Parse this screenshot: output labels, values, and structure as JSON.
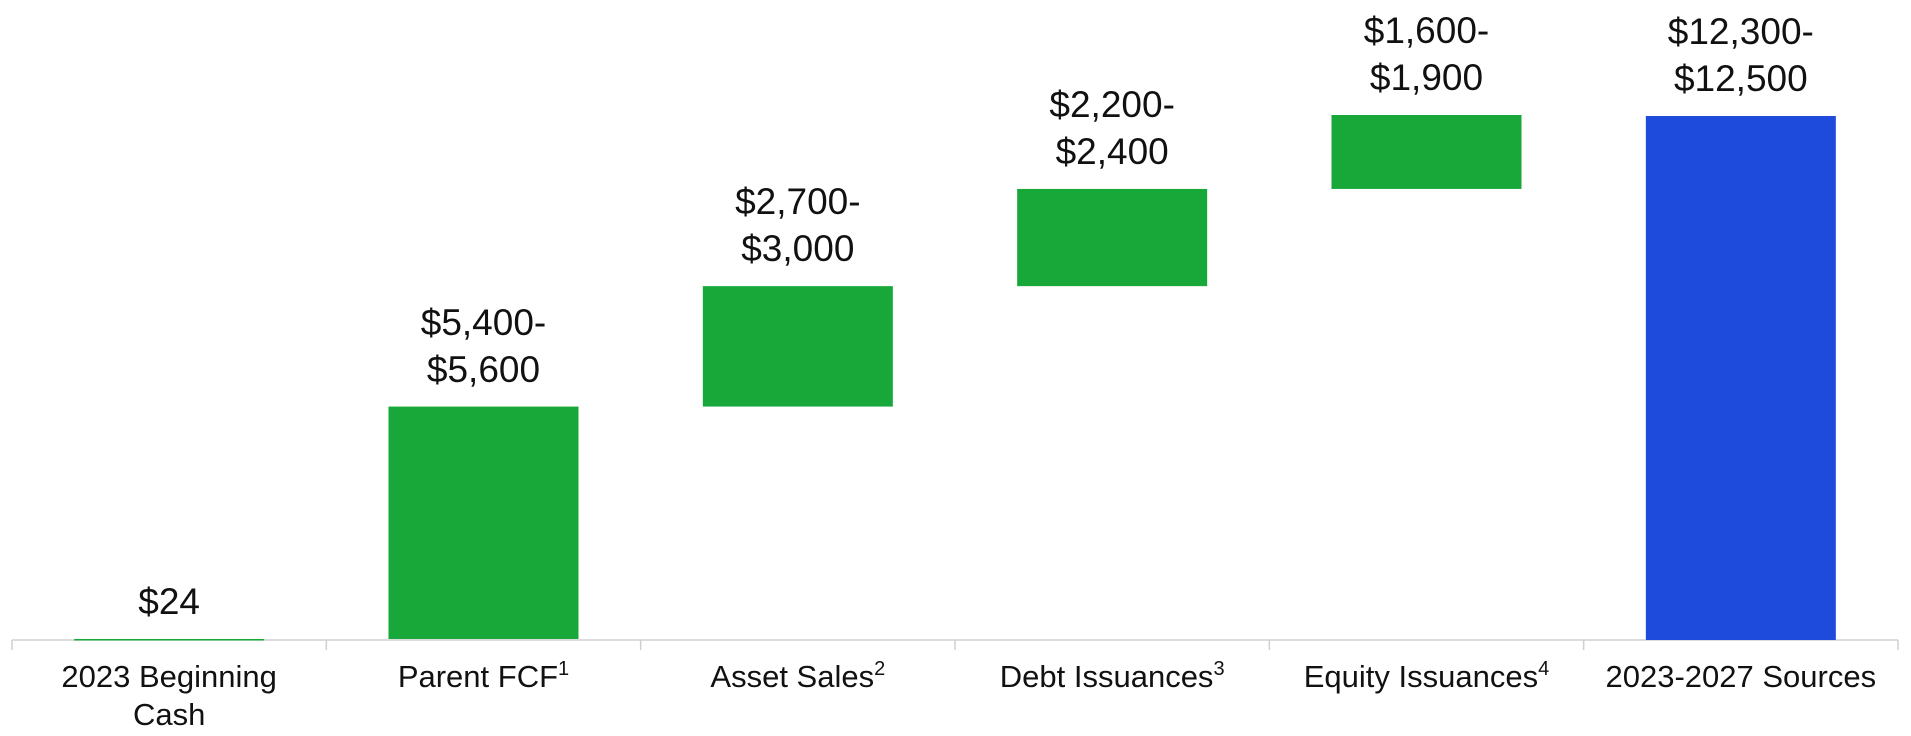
{
  "chart_data": {
    "type": "waterfall",
    "categories": [
      "2023 Beginning Cash",
      "Parent FCF",
      "Asset Sales",
      "Debt Issuances",
      "Equity Issuances",
      "2023-2027 Sources"
    ],
    "footnotes": [
      null,
      "1",
      "2",
      "3",
      "4",
      null
    ],
    "values": [
      24,
      5500,
      2850,
      2300,
      1750,
      12400
    ],
    "value_labels": [
      [
        "$24"
      ],
      [
        "$5,400-",
        "$5,600"
      ],
      [
        "$2,700-",
        "$3,000"
      ],
      [
        "$2,200-",
        "$2,400"
      ],
      [
        "$1,600-",
        "$1,900"
      ],
      [
        "$12,300-",
        "$12,500"
      ]
    ],
    "totals": [
      false,
      false,
      false,
      false,
      false,
      true
    ],
    "colors": [
      "#18a83a",
      "#18a83a",
      "#18a83a",
      "#18a83a",
      "#18a83a",
      "#1f4bdc"
    ]
  }
}
